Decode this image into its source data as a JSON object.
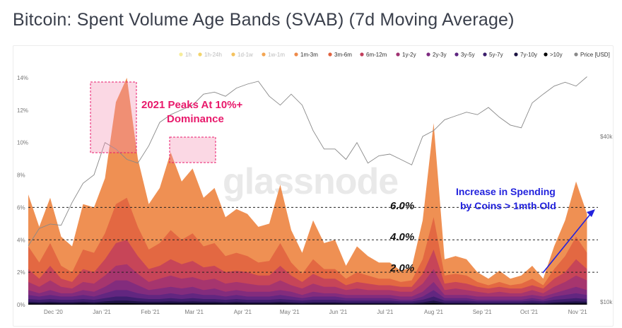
{
  "title": "Bitcoin: Spent Volume Age Bands (SVAB) (7d Moving Average)",
  "watermark": "glassnode",
  "colors": {
    "band_1m_3m": "#ee8a4a",
    "band_3m_6m": "#e0623f",
    "band_6m_12m": "#c23f5c",
    "band_1y_2y": "#a03272",
    "band_2y_3y": "#7d2a80",
    "band_3y_5y": "#5d2680",
    "band_5y_7y": "#3a1d6b",
    "band_7y_10y": "#1a1240",
    "band_gt10y": "#000000",
    "price_line": "#888888",
    "annotation_red": "#e8196b",
    "annotation_blue": "#2222dd"
  },
  "annotations": {
    "peaks_line1": "2021 Peaks At 10%+",
    "peaks_line2": "Dominance",
    "spending_line1": "Increase in Spending",
    "spending_line2": "by Coins > 1mth Old",
    "level_6": "6.0%",
    "level_4": "4.0%",
    "level_2": "2.0%"
  },
  "chart_data": {
    "type": "area",
    "title": "Bitcoin: Spent Volume Age Bands (SVAB) (7d Moving Average)",
    "legend": [
      "1h",
      "1h-24h",
      "1d-1w",
      "1w-1m",
      "1m-3m",
      "3m-6m",
      "6m-12m",
      "1y-2y",
      "2y-3y",
      "3y-5y",
      "5y-7y",
      "7y-10y",
      ">10y",
      "Price [USD]"
    ],
    "legend_faded": [
      true,
      true,
      true,
      true,
      false,
      false,
      false,
      false,
      false,
      false,
      false,
      false,
      false,
      false
    ],
    "legend_colors": [
      "#f6ec9a",
      "#f2d46a",
      "#f4c25e",
      "#f3a552",
      "#ee8a4a",
      "#e0623f",
      "#c23f5c",
      "#a03272",
      "#7d2a80",
      "#5d2680",
      "#3a1d6b",
      "#1a1240",
      "#000000",
      "#888888"
    ],
    "x_ticks": [
      "Dec '20",
      "Jan '21",
      "Feb '21",
      "Mar '21",
      "Apr '21",
      "May '21",
      "Jun '21",
      "Jul '21",
      "Aug '21",
      "Sep '21",
      "Oct '21",
      "Nov '21"
    ],
    "y_ticks": [
      "0%",
      "2%",
      "4%",
      "6%",
      "8%",
      "10%",
      "12%",
      "14%"
    ],
    "ylim": [
      0,
      14
    ],
    "y_right_ticks": [
      "$10k",
      "$40k"
    ],
    "reference_lines": [
      2,
      4,
      6
    ],
    "x": [
      "2020-11-15",
      "2020-11-22",
      "2020-11-29",
      "2020-12-06",
      "2020-12-13",
      "2020-12-20",
      "2020-12-27",
      "2021-01-03",
      "2021-01-10",
      "2021-01-17",
      "2021-01-24",
      "2021-01-31",
      "2021-02-07",
      "2021-02-14",
      "2021-02-21",
      "2021-02-28",
      "2021-03-07",
      "2021-03-14",
      "2021-03-21",
      "2021-03-28",
      "2021-04-04",
      "2021-04-11",
      "2021-04-18",
      "2021-04-25",
      "2021-05-02",
      "2021-05-09",
      "2021-05-16",
      "2021-05-23",
      "2021-05-30",
      "2021-06-06",
      "2021-06-13",
      "2021-06-20",
      "2021-06-27",
      "2021-07-04",
      "2021-07-11",
      "2021-07-18",
      "2021-07-25",
      "2021-08-01",
      "2021-08-08",
      "2021-08-15",
      "2021-08-22",
      "2021-08-29",
      "2021-09-05",
      "2021-09-12",
      "2021-09-19",
      "2021-09-26",
      "2021-10-03",
      "2021-10-10",
      "2021-10-17",
      "2021-10-24",
      "2021-10-31",
      "2021-11-07"
    ],
    "series": [
      {
        "name": "1m-3m",
        "values": [
          6.8,
          4.8,
          6.6,
          4.2,
          3.6,
          6.2,
          6.0,
          7.8,
          12.5,
          14.0,
          9.0,
          6.2,
          7.2,
          9.4,
          7.6,
          8.4,
          6.6,
          7.2,
          5.4,
          5.9,
          5.6,
          4.8,
          5.0,
          7.4,
          4.6,
          3.2,
          5.2,
          3.8,
          4.0,
          2.4,
          3.6,
          3.0,
          2.6,
          2.6,
          2.1,
          2.3,
          5.2,
          11.2,
          2.8,
          3.0,
          2.8,
          2.0,
          1.6,
          2.1,
          1.6,
          1.8,
          2.4,
          1.6,
          3.6,
          5.2,
          7.6,
          5.6
        ]
      },
      {
        "name": "3m-6m",
        "values": [
          3.6,
          2.6,
          3.8,
          2.4,
          2.0,
          3.4,
          3.2,
          4.4,
          6.2,
          6.6,
          4.8,
          3.4,
          3.8,
          4.6,
          4.0,
          4.4,
          3.6,
          3.8,
          3.0,
          3.2,
          3.0,
          2.6,
          2.7,
          3.8,
          2.6,
          1.9,
          2.8,
          2.2,
          2.2,
          1.6,
          2.0,
          1.8,
          1.6,
          1.6,
          1.4,
          1.5,
          2.8,
          5.4,
          1.8,
          1.9,
          1.8,
          1.4,
          1.2,
          1.4,
          1.2,
          1.3,
          1.6,
          1.2,
          2.2,
          3.0,
          4.2,
          3.2
        ]
      },
      {
        "name": "6m-12m",
        "values": [
          2.2,
          1.6,
          2.4,
          1.6,
          1.4,
          2.2,
          2.0,
          2.8,
          3.8,
          4.0,
          3.0,
          2.2,
          2.4,
          2.8,
          2.5,
          2.7,
          2.3,
          2.4,
          2.0,
          2.1,
          2.0,
          1.8,
          1.8,
          2.4,
          1.8,
          1.4,
          1.9,
          1.6,
          1.6,
          1.2,
          1.4,
          1.3,
          1.2,
          1.2,
          1.1,
          1.1,
          1.9,
          3.4,
          1.3,
          1.4,
          1.3,
          1.1,
          1.0,
          1.1,
          1.0,
          1.0,
          1.2,
          1.0,
          1.6,
          2.0,
          2.8,
          2.2
        ]
      },
      {
        "name": "1y-2y",
        "values": [
          1.4,
          1.1,
          1.5,
          1.1,
          1.0,
          1.4,
          1.3,
          1.8,
          2.4,
          2.5,
          1.9,
          1.4,
          1.6,
          1.8,
          1.6,
          1.7,
          1.5,
          1.6,
          1.3,
          1.4,
          1.3,
          1.2,
          1.2,
          1.5,
          1.2,
          1.0,
          1.3,
          1.1,
          1.1,
          0.9,
          1.0,
          0.9,
          0.9,
          0.9,
          0.8,
          0.8,
          1.3,
          2.2,
          0.9,
          1.0,
          0.9,
          0.8,
          0.7,
          0.8,
          0.7,
          0.7,
          0.9,
          0.7,
          1.1,
          1.4,
          1.8,
          1.5
        ]
      },
      {
        "name": "2y-3y",
        "values": [
          0.9,
          0.7,
          0.9,
          0.7,
          0.7,
          0.9,
          0.8,
          1.1,
          1.5,
          1.5,
          1.2,
          0.9,
          1.0,
          1.1,
          1.0,
          1.1,
          0.9,
          1.0,
          0.8,
          0.9,
          0.8,
          0.8,
          0.8,
          0.9,
          0.8,
          0.6,
          0.8,
          0.7,
          0.7,
          0.6,
          0.6,
          0.6,
          0.6,
          0.6,
          0.5,
          0.5,
          0.8,
          1.4,
          0.6,
          0.6,
          0.6,
          0.5,
          0.5,
          0.5,
          0.5,
          0.5,
          0.6,
          0.5,
          0.7,
          0.9,
          1.1,
          0.9
        ]
      },
      {
        "name": "3y-5y",
        "values": [
          0.6,
          0.5,
          0.6,
          0.5,
          0.5,
          0.6,
          0.5,
          0.7,
          0.9,
          0.9,
          0.7,
          0.6,
          0.6,
          0.7,
          0.6,
          0.7,
          0.6,
          0.6,
          0.5,
          0.6,
          0.5,
          0.5,
          0.5,
          0.6,
          0.5,
          0.4,
          0.5,
          0.5,
          0.5,
          0.4,
          0.4,
          0.4,
          0.4,
          0.4,
          0.3,
          0.3,
          0.5,
          0.9,
          0.4,
          0.4,
          0.4,
          0.3,
          0.3,
          0.3,
          0.3,
          0.3,
          0.4,
          0.3,
          0.5,
          0.6,
          0.7,
          0.6
        ]
      },
      {
        "name": "5y-7y",
        "values": [
          0.35,
          0.3,
          0.35,
          0.3,
          0.3,
          0.35,
          0.3,
          0.4,
          0.5,
          0.5,
          0.4,
          0.35,
          0.35,
          0.4,
          0.35,
          0.4,
          0.35,
          0.35,
          0.3,
          0.35,
          0.3,
          0.3,
          0.3,
          0.35,
          0.3,
          0.25,
          0.3,
          0.3,
          0.3,
          0.25,
          0.25,
          0.25,
          0.25,
          0.25,
          0.2,
          0.2,
          0.3,
          0.5,
          0.25,
          0.25,
          0.25,
          0.2,
          0.2,
          0.2,
          0.2,
          0.2,
          0.25,
          0.2,
          0.3,
          0.35,
          0.4,
          0.35
        ]
      },
      {
        "name": "7y-10y",
        "values": [
          0.18,
          0.15,
          0.18,
          0.15,
          0.15,
          0.18,
          0.15,
          0.2,
          0.25,
          0.25,
          0.2,
          0.18,
          0.18,
          0.2,
          0.18,
          0.2,
          0.18,
          0.18,
          0.15,
          0.18,
          0.15,
          0.15,
          0.15,
          0.18,
          0.15,
          0.12,
          0.15,
          0.15,
          0.15,
          0.12,
          0.12,
          0.12,
          0.12,
          0.12,
          0.1,
          0.1,
          0.15,
          0.25,
          0.12,
          0.12,
          0.12,
          0.1,
          0.1,
          0.1,
          0.1,
          0.1,
          0.12,
          0.1,
          0.15,
          0.18,
          0.2,
          0.18
        ]
      },
      {
        "name": ">10y",
        "values": [
          0.08,
          0.06,
          0.08,
          0.06,
          0.06,
          0.08,
          0.06,
          0.09,
          0.1,
          0.1,
          0.08,
          0.07,
          0.07,
          0.08,
          0.07,
          0.08,
          0.07,
          0.07,
          0.06,
          0.07,
          0.06,
          0.06,
          0.06,
          0.07,
          0.06,
          0.05,
          0.06,
          0.06,
          0.06,
          0.05,
          0.05,
          0.05,
          0.05,
          0.05,
          0.04,
          0.04,
          0.06,
          0.1,
          0.05,
          0.05,
          0.05,
          0.04,
          0.04,
          0.04,
          0.04,
          0.04,
          0.05,
          0.04,
          0.06,
          0.07,
          0.08,
          0.07
        ]
      }
    ],
    "price": {
      "name": "Price [USD]",
      "values": [
        16000,
        18500,
        19200,
        19000,
        23000,
        27000,
        29000,
        38000,
        36000,
        33000,
        32000,
        37000,
        45000,
        48000,
        50000,
        52000,
        57000,
        58000,
        56000,
        60000,
        62000,
        63500,
        56000,
        52000,
        57000,
        52000,
        42000,
        36000,
        36000,
        33000,
        38000,
        32000,
        34000,
        34500,
        33000,
        31500,
        40000,
        42000,
        46000,
        47500,
        49000,
        48000,
        51000,
        47000,
        44000,
        43000,
        53000,
        57000,
        61000,
        63000,
        61000,
        66000
      ]
    }
  }
}
